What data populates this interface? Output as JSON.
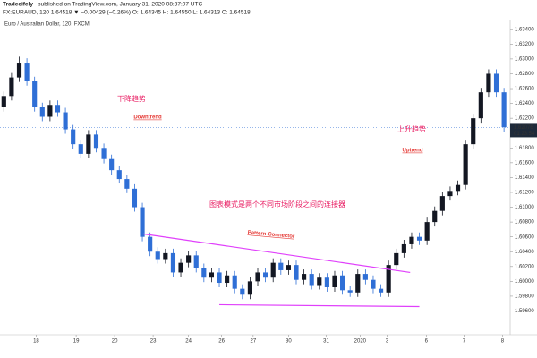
{
  "header": {
    "author": "Tradecifely",
    "published": "published on TradingView.com, January 31, 2020 08:37:07 UTC",
    "symbol_line": "FX:EURAUD, 120  1.64518 ▼ −0.00429 (−0.26%)  O: 1.64345  H: 1.64550  L: 1.64313  C: 1.64518"
  },
  "chart_data": {
    "type": "candlestick",
    "title": "Euro / Australian Dollar, 120, FXCM",
    "up_color": "#131722",
    "down_color": "#2f6fd6",
    "open": [
      1.6235,
      1.625,
      1.6275,
      1.6295,
      1.627,
      1.6235,
      1.6222,
      1.6238,
      1.6228,
      1.6205,
      1.6185,
      1.6172,
      1.6198,
      1.618,
      1.6165,
      1.615,
      1.6138,
      1.6125,
      1.61,
      1.606,
      1.604,
      1.603,
      1.6038,
      1.6012,
      1.6025,
      1.6035,
      1.6018,
      1.6005,
      1.6012,
      1.5998,
      1.6008,
      1.599,
      1.5982,
      1.6,
      1.6012,
      1.6005,
      1.6025,
      1.6015,
      1.6022,
      1.6002,
      1.601,
      1.5995,
      1.6005,
      1.5992,
      1.6008,
      1.5988,
      1.5985,
      1.601,
      1.6002,
      1.599,
      1.5985,
      1.6022,
      1.6038,
      1.605,
      1.606,
      1.6055,
      1.608,
      1.6095,
      1.6115,
      1.6122,
      1.613,
      1.6185,
      1.622,
      1.6255,
      1.628,
      1.6255
    ],
    "high": [
      1.6256,
      1.6281,
      1.6303,
      1.6301,
      1.6276,
      1.6241,
      1.6244,
      1.6244,
      1.6234,
      1.6211,
      1.6191,
      1.6204,
      1.6204,
      1.6186,
      1.6171,
      1.6156,
      1.6144,
      1.6131,
      1.6106,
      1.6066,
      1.6046,
      1.6044,
      1.6044,
      1.6031,
      1.6041,
      1.6041,
      1.6024,
      1.6018,
      1.6018,
      1.6014,
      1.6014,
      1.5996,
      1.6006,
      1.6018,
      1.6018,
      1.6031,
      1.6031,
      1.6028,
      1.6028,
      1.6016,
      1.6016,
      1.6011,
      1.6011,
      1.6014,
      1.6014,
      1.5994,
      1.6016,
      1.6016,
      1.6008,
      1.5996,
      1.6028,
      1.6044,
      1.6056,
      1.6066,
      1.6066,
      1.6086,
      1.6101,
      1.6121,
      1.6128,
      1.6136,
      1.6191,
      1.6226,
      1.6261,
      1.6286,
      1.6286,
      1.6261
    ],
    "low": [
      1.6229,
      1.6244,
      1.6269,
      1.6264,
      1.6229,
      1.6216,
      1.6216,
      1.6222,
      1.6199,
      1.6179,
      1.6166,
      1.6166,
      1.6174,
      1.6159,
      1.6144,
      1.6132,
      1.6119,
      1.6094,
      1.6054,
      1.6034,
      1.6024,
      1.6024,
      1.6006,
      1.6006,
      1.6019,
      1.6012,
      1.5999,
      1.5999,
      1.5992,
      1.5992,
      1.5984,
      1.5976,
      1.5976,
      1.5994,
      1.5999,
      1.5999,
      1.6009,
      1.6009,
      1.5996,
      1.5996,
      1.5989,
      1.5989,
      1.5986,
      1.5986,
      1.5982,
      1.5979,
      1.5979,
      1.5996,
      1.5984,
      1.5979,
      1.5979,
      1.6016,
      1.6032,
      1.6044,
      1.6049,
      1.6049,
      1.6074,
      1.6089,
      1.6109,
      1.6116,
      1.6124,
      1.6179,
      1.6214,
      1.6249,
      1.6249,
      1.6202
    ],
    "close": [
      1.625,
      1.6275,
      1.6295,
      1.627,
      1.6235,
      1.6222,
      1.6238,
      1.6228,
      1.6205,
      1.6185,
      1.6172,
      1.6198,
      1.618,
      1.6165,
      1.615,
      1.6138,
      1.6125,
      1.61,
      1.606,
      1.604,
      1.603,
      1.6038,
      1.6012,
      1.6025,
      1.6035,
      1.6018,
      1.6005,
      1.6012,
      1.5998,
      1.6008,
      1.599,
      1.5982,
      1.6,
      1.6012,
      1.6005,
      1.6025,
      1.6015,
      1.6022,
      1.6002,
      1.601,
      1.5995,
      1.6005,
      1.5992,
      1.6008,
      1.5988,
      1.5985,
      1.601,
      1.6002,
      1.599,
      1.5985,
      1.6022,
      1.6038,
      1.605,
      1.606,
      1.6055,
      1.608,
      1.6095,
      1.6115,
      1.6122,
      1.613,
      1.6185,
      1.622,
      1.6255,
      1.628,
      1.6255,
      1.6208
    ],
    "xlim": [
      -0.5,
      65.8
    ],
    "xticks": [
      {
        "value": 4.2,
        "label": "18"
      },
      {
        "value": 9.4,
        "label": "19"
      },
      {
        "value": 14.4,
        "label": "20"
      },
      {
        "value": 19.4,
        "label": "23"
      },
      {
        "value": 24,
        "label": "24"
      },
      {
        "value": 28.3,
        "label": "26"
      },
      {
        "value": 32.4,
        "label": "27"
      },
      {
        "value": 37,
        "label": "30"
      },
      {
        "value": 41.9,
        "label": "31"
      },
      {
        "value": 46.3,
        "label": "2020"
      },
      {
        "value": 49.8,
        "label": "3"
      },
      {
        "value": 54.9,
        "label": "6"
      },
      {
        "value": 59.8,
        "label": "7"
      },
      {
        "value": 64.8,
        "label": "8"
      }
    ],
    "ylim": [
      1.5928,
      1.6353
    ],
    "yticks": [
      {
        "value": 1.596,
        "label": "1.59600"
      },
      {
        "value": 1.598,
        "label": "1.59800"
      },
      {
        "value": 1.6,
        "label": "1.60000"
      },
      {
        "value": 1.602,
        "label": "1.60200"
      },
      {
        "value": 1.604,
        "label": "1.60400"
      },
      {
        "value": 1.606,
        "label": "1.60600"
      },
      {
        "value": 1.608,
        "label": "1.60800"
      },
      {
        "value": 1.61,
        "label": "1.61000"
      },
      {
        "value": 1.612,
        "label": "1.61200"
      },
      {
        "value": 1.614,
        "label": "1.61400"
      },
      {
        "value": 1.616,
        "label": "1.61600"
      },
      {
        "value": 1.618,
        "label": "1.61800"
      },
      {
        "value": 1.62,
        "label": "1.62000"
      },
      {
        "value": 1.622,
        "label": "1.62200"
      },
      {
        "value": 1.624,
        "label": "1.62400"
      },
      {
        "value": 1.626,
        "label": "1.62600"
      },
      {
        "value": 1.628,
        "label": "1.62800"
      },
      {
        "value": 1.63,
        "label": "1.63000"
      },
      {
        "value": 1.632,
        "label": "1.63200"
      },
      {
        "value": 1.634,
        "label": "1.63400"
      }
    ],
    "price_marker": {
      "value": 1.62076,
      "countdown": "01:23:54"
    },
    "trendlines": [
      {
        "color": "#e040fb",
        "x": [
          18.1,
          52.8
        ],
        "y": [
          1.6064,
          1.6012
        ]
      },
      {
        "color": "#e040fb",
        "x": [
          28,
          54
        ],
        "y": [
          1.59685,
          1.5966
        ]
      }
    ],
    "annotations": {
      "downtrend_cn": "下降趋势",
      "downtrend": "Downtrend",
      "uptrend_cn": "上升趋势",
      "uptrend": "Uptrend",
      "pattern_cn": "图表模式是两个不同市场阶段之间的连接器",
      "pattern": "Pattern-Connector"
    }
  }
}
